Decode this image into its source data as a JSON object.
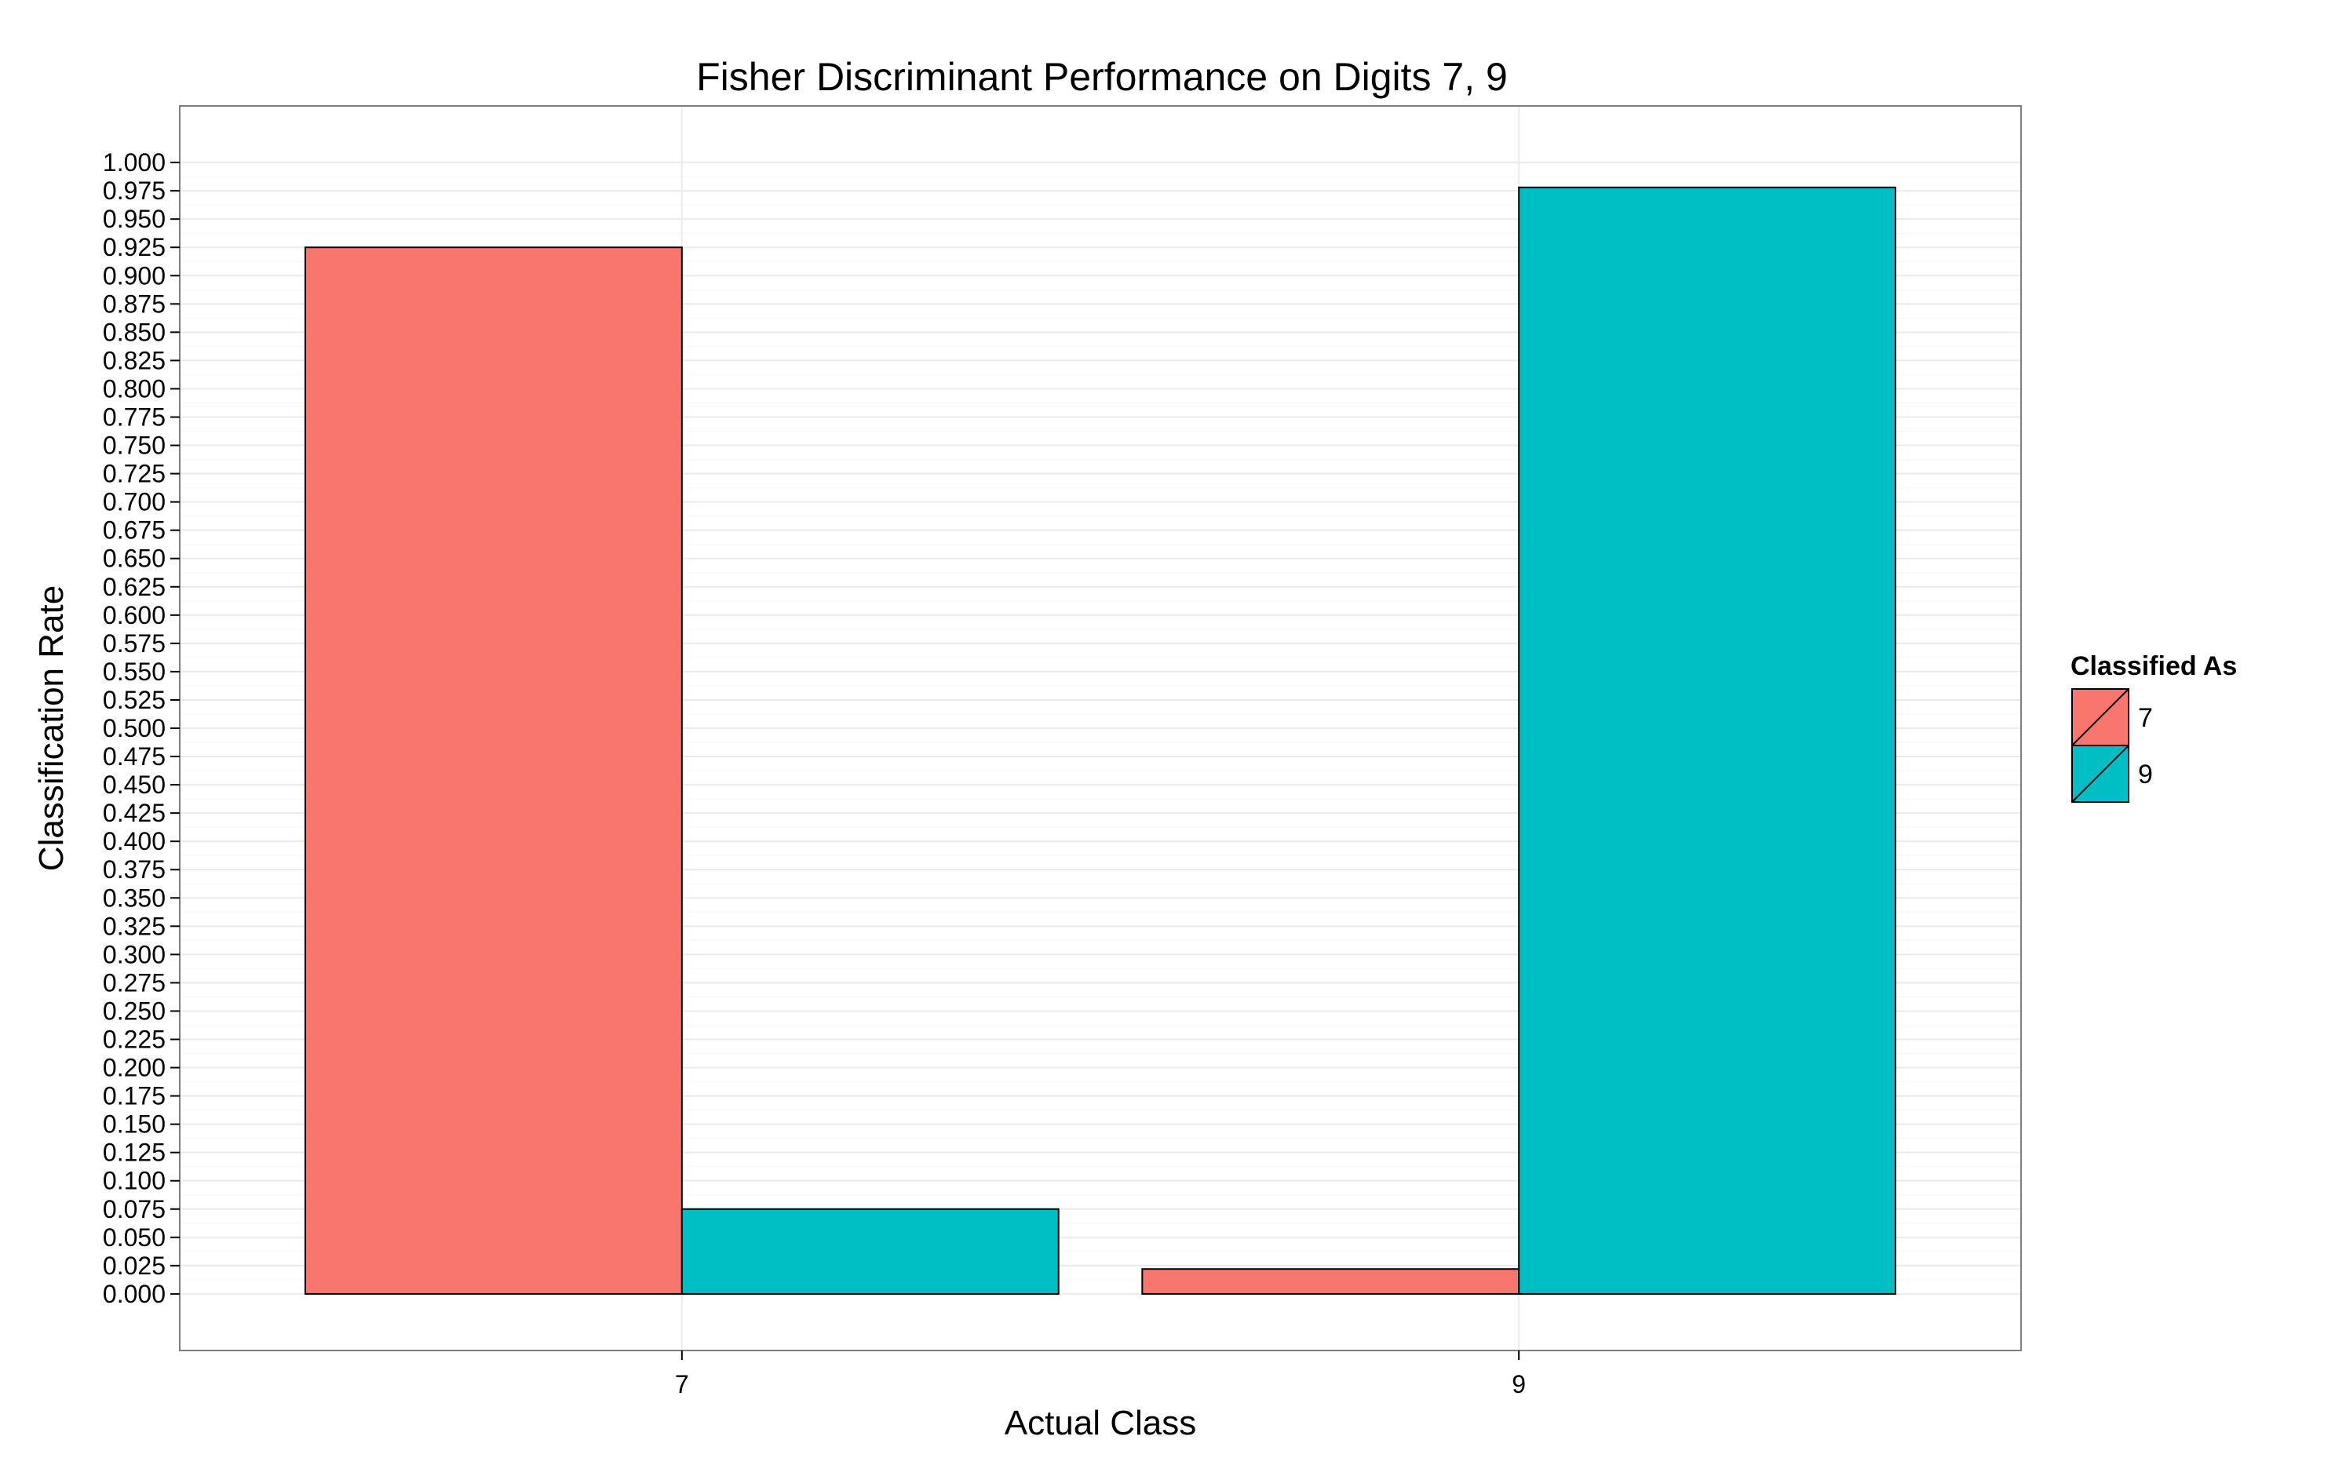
{
  "chart_data": {
    "type": "bar",
    "title": "Fisher Discriminant Performance on Digits 7, 9",
    "xlabel": "Actual Class",
    "ylabel": "Classification Rate",
    "categories": [
      "7",
      "9"
    ],
    "series": [
      {
        "name": "7",
        "values": [
          0.925,
          0.022
        ],
        "color": "#F8766D"
      },
      {
        "name": "9",
        "values": [
          0.075,
          0.978
        ],
        "color": "#00BFC4"
      }
    ],
    "ylim": [
      -0.05,
      1.05
    ],
    "y_ticks": [
      "0.000",
      "0.025",
      "0.050",
      "0.075",
      "0.100",
      "0.125",
      "0.150",
      "0.175",
      "0.200",
      "0.225",
      "0.250",
      "0.275",
      "0.300",
      "0.325",
      "0.350",
      "0.375",
      "0.400",
      "0.425",
      "0.450",
      "0.475",
      "0.500",
      "0.525",
      "0.550",
      "0.575",
      "0.600",
      "0.625",
      "0.650",
      "0.675",
      "0.700",
      "0.725",
      "0.750",
      "0.775",
      "0.800",
      "0.825",
      "0.850",
      "0.875",
      "0.900",
      "0.925",
      "0.950",
      "0.975",
      "1.000"
    ],
    "legend": {
      "title": "Classified As",
      "position": "right"
    },
    "grid": true,
    "background": "#ffffff",
    "grid_color": "#ebebeb",
    "border_color": "#7f7f7f"
  }
}
